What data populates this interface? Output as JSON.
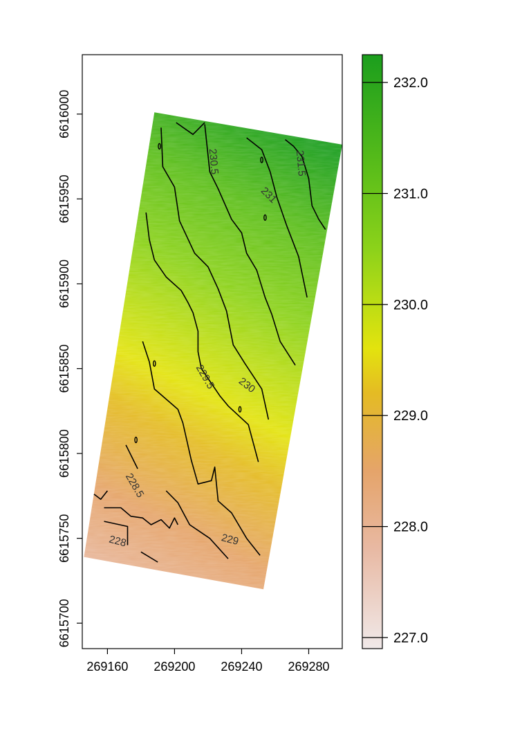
{
  "chart_data": {
    "type": "heatmap",
    "title": "",
    "xlabel": "",
    "ylabel": "",
    "xlim": [
      269145,
      269300
    ],
    "ylim": [
      6615685,
      6616035
    ],
    "x_ticks": [
      "269160",
      "269200",
      "269240",
      "269280"
    ],
    "y_ticks": [
      "6615700",
      "6615750",
      "6615800",
      "6615850",
      "6615900",
      "6615950",
      "6616000"
    ],
    "x_tick_values": [
      269160,
      269200,
      269240,
      269280
    ],
    "y_tick_values": [
      6615700,
      6615750,
      6615800,
      6615850,
      6615900,
      6615950,
      6616000
    ],
    "field_polygon": [
      [
        269188,
        6616001
      ],
      [
        269300,
        6615982
      ],
      [
        269253,
        6615720
      ],
      [
        269146,
        6615739
      ]
    ],
    "colorbar": {
      "min": 226.9,
      "max": 232.25,
      "ticks": [
        "227.0",
        "228.0",
        "229.0",
        "230.0",
        "231.0",
        "232.0"
      ],
      "tick_values": [
        227,
        228,
        229,
        230,
        231,
        232
      ],
      "stops": [
        {
          "value": 226.9,
          "color": "#f0e9e9"
        },
        {
          "value": 227.8,
          "color": "#e8b9a3"
        },
        {
          "value": 228.5,
          "color": "#e5a46a"
        },
        {
          "value": 229.2,
          "color": "#e4bb24"
        },
        {
          "value": 229.6,
          "color": "#e3e30e"
        },
        {
          "value": 230.0,
          "color": "#bddd14"
        },
        {
          "value": 230.5,
          "color": "#8cd21a"
        },
        {
          "value": 231.2,
          "color": "#5cbe1a"
        },
        {
          "value": 232.25,
          "color": "#1b9e1d"
        }
      ]
    },
    "contour_labels": [
      {
        "text": "228",
        "x": 269166,
        "y": 6615748,
        "angle": 15
      },
      {
        "text": "228.5",
        "x": 269176,
        "y": 6615781,
        "angle": 60
      },
      {
        "text": "229",
        "x": 269233,
        "y": 6615749,
        "angle": 15
      },
      {
        "text": "229.5",
        "x": 269218,
        "y": 6615845,
        "angle": 60
      },
      {
        "text": "230",
        "x": 269243,
        "y": 6615840,
        "angle": 38
      },
      {
        "text": "230.5",
        "x": 269223,
        "y": 6615972,
        "angle": 85
      },
      {
        "text": "231",
        "x": 269256,
        "y": 6615952,
        "angle": 45
      },
      {
        "text": "231.5",
        "x": 269275,
        "y": 6615971,
        "angle": 85
      }
    ],
    "contour_lines": [
      {
        "level": 228,
        "points": [
          [
            269158,
            6615760
          ],
          [
            269172,
            6615757
          ],
          [
            269172,
            6615746
          ]
        ]
      },
      {
        "level": 228,
        "points": [
          [
            269180,
            6615742
          ],
          [
            269190,
            6615736
          ]
        ]
      },
      {
        "level": 228.5,
        "points": [
          [
            269171,
            6615805
          ],
          [
            269178,
            6615791
          ]
        ]
      },
      {
        "level": 228.5,
        "points": [
          [
            269152,
            6615776
          ],
          [
            269156,
            6615773
          ],
          [
            269160,
            6615778
          ]
        ]
      },
      {
        "level": 228.5,
        "points": [
          [
            269158,
            6615768
          ],
          [
            269168,
            6615768
          ],
          [
            269174,
            6615763
          ],
          [
            269181,
            6615762
          ],
          [
            269186,
            6615758
          ],
          [
            269192,
            6615761
          ],
          [
            269197,
            6615756
          ],
          [
            269200,
            6615762
          ],
          [
            269202,
            6615758
          ]
        ]
      },
      {
        "level": 228.5,
        "points": [
          [
            269195,
            6615778
          ],
          [
            269202,
            6615771
          ],
          [
            269209,
            6615758
          ],
          [
            269221,
            6615750
          ],
          [
            269232,
            6615738
          ]
        ]
      },
      {
        "level": 229,
        "points": [
          [
            269181,
            6615866
          ],
          [
            269185,
            6615854
          ],
          [
            269188,
            6615838
          ],
          [
            269202,
            6615826
          ],
          [
            269205,
            6615818
          ],
          [
            269210,
            6615796
          ],
          [
            269214,
            6615782
          ],
          [
            269222,
            6615784
          ],
          [
            269224,
            6615792
          ],
          [
            269226,
            6615772
          ],
          [
            269234,
            6615765
          ],
          [
            269243,
            6615750
          ],
          [
            269251,
            6615740
          ]
        ]
      },
      {
        "level": 229.5,
        "points": [
          [
            269183,
            6615942
          ],
          [
            269185,
            6615926
          ],
          [
            269188,
            6615914
          ],
          [
            269195,
            6615904
          ],
          [
            269204,
            6615896
          ],
          [
            269208,
            6615889
          ],
          [
            269211,
            6615883
          ],
          [
            269214,
            6615872
          ],
          [
            269214,
            6615860
          ],
          [
            269216,
            6615850
          ],
          [
            269227,
            6615834
          ],
          [
            269232,
            6615828
          ],
          [
            269244,
            6615817
          ],
          [
            269250,
            6615795
          ]
        ]
      },
      {
        "level": 230,
        "points": [
          [
            269192,
            6615992
          ],
          [
            269193,
            6615969
          ],
          [
            269200,
            6615957
          ],
          [
            269203,
            6615937
          ],
          [
            269212,
            6615918
          ],
          [
            269220,
            6615910
          ],
          [
            269226,
            6615897
          ],
          [
            269231,
            6615884
          ],
          [
            269235,
            6615864
          ],
          [
            269242,
            6615853
          ],
          [
            269252,
            6615838
          ],
          [
            269256,
            6615820
          ]
        ]
      },
      {
        "level": 230.5,
        "points": [
          [
            269201,
            6615995
          ],
          [
            269211,
            6615988
          ],
          [
            269218,
            6615995
          ]
        ]
      },
      {
        "level": 230.5,
        "points": [
          [
            269218,
            6615994
          ],
          [
            269221,
            6615966
          ],
          [
            269226,
            6615956
          ],
          [
            269234,
            6615938
          ],
          [
            269240,
            6615930
          ],
          [
            269243,
            6615918
          ],
          [
            269249,
            6615908
          ],
          [
            269254,
            6615892
          ],
          [
            269258,
            6615882
          ],
          [
            269263,
            6615866
          ],
          [
            269272,
            6615852
          ]
        ]
      },
      {
        "level": 231,
        "points": [
          [
            269243,
            6615986
          ],
          [
            269252,
            6615979
          ],
          [
            269257,
            6615966
          ],
          [
            269261,
            6615951
          ],
          [
            269267,
            6615934
          ],
          [
            269274,
            6615916
          ],
          [
            269279,
            6615892
          ]
        ]
      },
      {
        "level": 231.5,
        "points": [
          [
            269266,
            6615985
          ],
          [
            269271,
            6615981
          ],
          [
            269276,
            6615975
          ],
          [
            269280,
            6615962
          ],
          [
            269282,
            6615946
          ],
          [
            269286,
            6615938
          ],
          [
            269290,
            6615932
          ]
        ]
      }
    ]
  }
}
